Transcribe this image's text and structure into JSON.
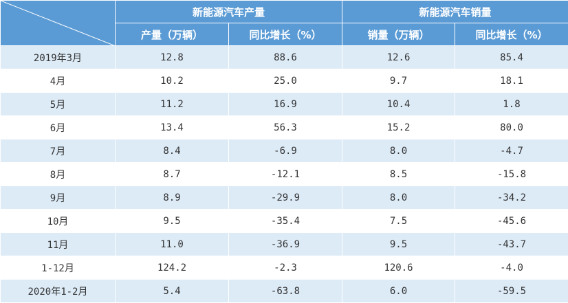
{
  "table": {
    "groups": [
      "新能源汽车产量",
      "新能源汽车销量"
    ],
    "columns": [
      "产量（万辆）",
      "同比增长（%）",
      "销量（万辆）",
      "同比增长（%）"
    ],
    "rows": [
      [
        "2019年3月",
        "12.8",
        "88.6",
        "12.6",
        "85.4"
      ],
      [
        "4月",
        "10.2",
        "25.0",
        "9.7",
        "18.1"
      ],
      [
        "5月",
        "11.2",
        "16.9",
        "10.4",
        "1.8"
      ],
      [
        "6月",
        "13.4",
        "56.3",
        "15.2",
        "80.0"
      ],
      [
        "7月",
        "8.4",
        "-6.9",
        "8.0",
        "-4.7"
      ],
      [
        "8月",
        "8.7",
        "-12.1",
        "8.5",
        "-15.8"
      ],
      [
        "9月",
        "8.9",
        "-29.9",
        "8.0",
        "-34.2"
      ],
      [
        "10月",
        "9.5",
        "-35.4",
        "7.5",
        "-45.6"
      ],
      [
        "11月",
        "11.0",
        "-36.9",
        "9.5",
        "-43.7"
      ],
      [
        "1-12月",
        "124.2",
        "-2.3",
        "120.6",
        "-4.0"
      ],
      [
        "2020年1-2月",
        "5.4",
        "-63.8",
        "6.0",
        "-59.5"
      ]
    ]
  }
}
